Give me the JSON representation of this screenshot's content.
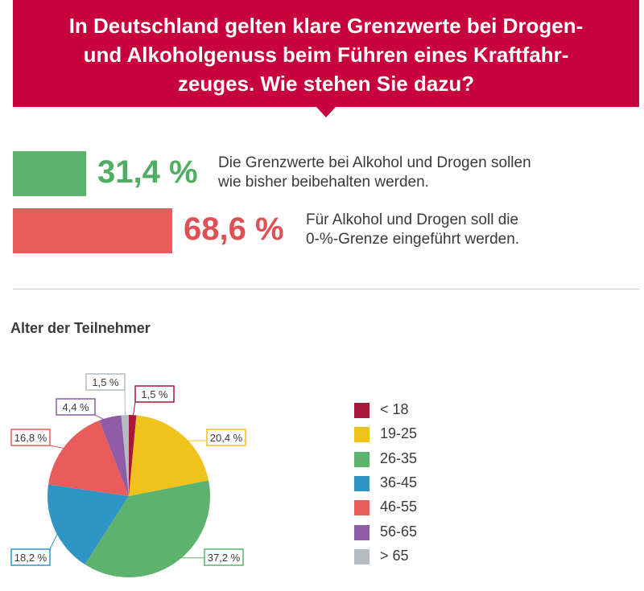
{
  "header": {
    "title": "In Deutschland gelten klare Grenzwerte bei Drogen-\nund Alkoholgenuss beim Führen eines Kraftfahr-\nzeuges. Wie stehen Sie dazu?",
    "color": "#c8003c"
  },
  "answers": [
    {
      "percent_label": "31,4 %",
      "value": 31.4,
      "text": "Die Grenzwerte bei Alkohol und Drogen sollen\nwie bisher beibehalten werden.",
      "bar_color": "#5db36e",
      "text_color": "#4fae63"
    },
    {
      "percent_label": "68,6 %",
      "value": 68.6,
      "text": "Für Alkohol und Drogen soll die\n0-%-Grenze eingeführt werden.",
      "bar_color": "#e85c5c",
      "text_color": "#e04f54"
    }
  ],
  "section_title": "Alter der Teilnehmer",
  "chart_data": {
    "type": "pie",
    "title": "Alter der Teilnehmer",
    "categories": [
      "< 18",
      "19-25",
      "26-35",
      "36-45",
      "46-55",
      "56-65",
      "> 65"
    ],
    "values": [
      1.5,
      20.4,
      37.2,
      18.2,
      16.8,
      4.4,
      1.5
    ],
    "labels": [
      "1,5 %",
      "20,4 %",
      "37,2 %",
      "18,2 %",
      "16,8 %",
      "4,4 %",
      "1,5 %"
    ],
    "colors": [
      "#a8173a",
      "#f0c21c",
      "#5db36e",
      "#2e95c4",
      "#e85c5c",
      "#8e5ca6",
      "#b3bcc0"
    ],
    "legend_position": "right"
  }
}
